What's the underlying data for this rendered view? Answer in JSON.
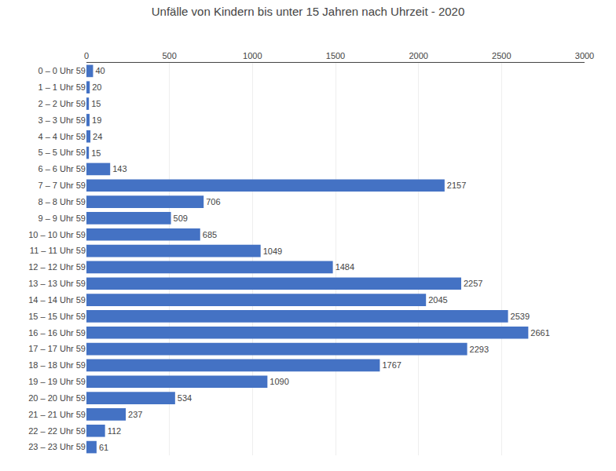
{
  "chart_data": {
    "type": "bar",
    "orientation": "horizontal",
    "title": "Unfälle von Kindern bis unter 15 Jahren nach Uhrzeit - 2020",
    "categories": [
      "0 – 0 Uhr 59",
      "1 – 1 Uhr 59",
      "2 – 2 Uhr 59",
      "3 – 3 Uhr 59",
      "4 – 4 Uhr 59",
      "5 – 5 Uhr 59",
      "6 – 6 Uhr 59",
      "7 – 7 Uhr 59",
      "8 – 8 Uhr 59",
      "9 – 9 Uhr 59",
      "10 – 10 Uhr 59",
      "11 – 11 Uhr 59",
      "12 – 12 Uhr 59",
      "13 – 13 Uhr 59",
      "14 – 14 Uhr 59",
      "15 – 15 Uhr 59",
      "16 – 16 Uhr 59",
      "17 – 17 Uhr 59",
      "18 – 18 Uhr 59",
      "19 – 19 Uhr 59",
      "20 – 20 Uhr 59",
      "21 – 21 Uhr 59",
      "22 – 22 Uhr 59",
      "23 – 23 Uhr 59"
    ],
    "values": [
      40,
      20,
      15,
      19,
      24,
      15,
      143,
      2157,
      706,
      509,
      685,
      1049,
      1484,
      2257,
      2045,
      2539,
      2661,
      2293,
      1767,
      1090,
      534,
      237,
      112,
      61
    ],
    "color": "#4472c4",
    "xlim": [
      0,
      3000
    ],
    "xticks": [
      0,
      500,
      1000,
      1500,
      2000,
      2500,
      3000
    ],
    "grid": true,
    "data_labels": true
  }
}
